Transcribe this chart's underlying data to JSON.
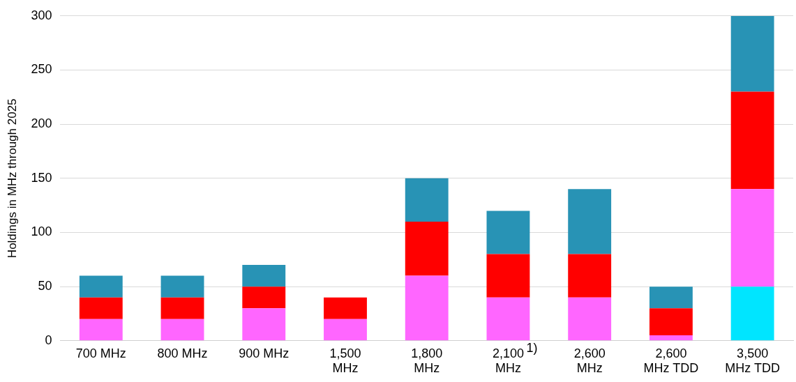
{
  "chart_data": {
    "type": "bar",
    "stacked": true,
    "ylabel": "Holdings in MHz through 2025",
    "categories": [
      "700 MHz",
      "800 MHz",
      "900 MHz",
      "1,500 MHz",
      "1,800 MHz",
      "2,100 MHz",
      "2,600 MHz",
      "2,600 MHz TDD",
      "3,500 MHz TDD"
    ],
    "series": [
      {
        "color": "#00e5ff",
        "values": [
          0,
          0,
          0,
          0,
          0,
          0,
          0,
          0,
          50
        ]
      },
      {
        "color": "#ff66ff",
        "values": [
          20,
          20,
          30,
          20,
          60,
          40,
          40,
          5,
          90
        ]
      },
      {
        "color": "#ff0000",
        "values": [
          20,
          20,
          20,
          20,
          50,
          40,
          40,
          25,
          90
        ]
      },
      {
        "color": "#2893b5",
        "values": [
          20,
          20,
          20,
          0,
          40,
          40,
          60,
          20,
          70
        ]
      }
    ],
    "ylim": [
      0,
      300
    ],
    "yticks": [
      0,
      50,
      100,
      150,
      200,
      250,
      300
    ],
    "grid": "y",
    "legend": false,
    "annotations": [
      "1)"
    ]
  }
}
